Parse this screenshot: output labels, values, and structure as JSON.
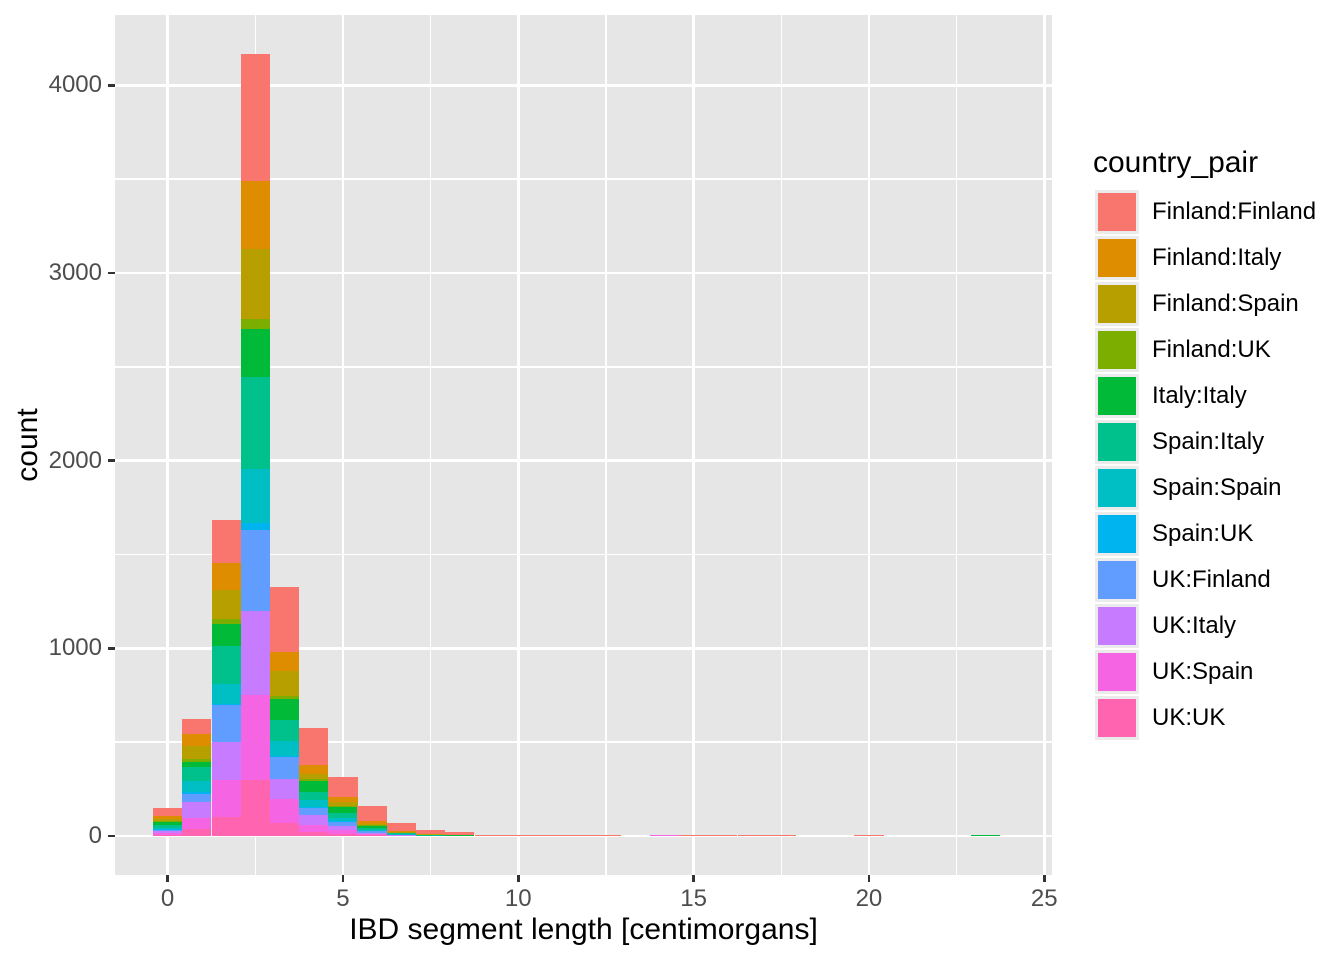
{
  "figure": {
    "background": "#ffffff",
    "panel_background": "#e6e6e6",
    "grid_color": "#ffffff",
    "tick_color": "#333333",
    "tick_label_color": "#4d4d4d"
  },
  "axes": {
    "x": {
      "title": "IBD segment length [centimorgans]",
      "tick_labels": [
        "0",
        "5",
        "10",
        "15",
        "20",
        "25"
      ],
      "tick_values": [
        0,
        5,
        10,
        15,
        20,
        25
      ],
      "minor_values": [
        2.5,
        7.5,
        12.5,
        17.5,
        22.5
      ]
    },
    "y": {
      "title": "count",
      "tick_labels": [
        "0",
        "1000",
        "2000",
        "3000",
        "4000"
      ],
      "tick_values": [
        0,
        1000,
        2000,
        3000,
        4000
      ],
      "minor_values": [
        500,
        1500,
        2500,
        3500
      ]
    }
  },
  "legend": {
    "title": "country_pair",
    "entries": [
      {
        "label": "Finland:Finland",
        "color": "#F8766D"
      },
      {
        "label": "Finland:Italy",
        "color": "#DE8C00"
      },
      {
        "label": "Finland:Spain",
        "color": "#B79F00"
      },
      {
        "label": "Finland:UK",
        "color": "#7CAE00"
      },
      {
        "label": "Italy:Italy",
        "color": "#00BA38"
      },
      {
        "label": "Spain:Italy",
        "color": "#00C08B"
      },
      {
        "label": "Spain:Spain",
        "color": "#00BFC4"
      },
      {
        "label": "Spain:UK",
        "color": "#00B4F0"
      },
      {
        "label": "UK:Finland",
        "color": "#619CFF"
      },
      {
        "label": "UK:Italy",
        "color": "#C77CFF"
      },
      {
        "label": "UK:Spain",
        "color": "#F564E3"
      },
      {
        "label": "UK:UK",
        "color": "#FF64B0"
      }
    ]
  },
  "chart_data": {
    "type": "bar",
    "subtype": "stacked-histogram",
    "title": "",
    "xlabel": "IBD segment length [centimorgans]",
    "ylabel": "count",
    "legend_title": "country_pair",
    "legend_position": "right",
    "grid": "on",
    "xlim": [
      -1.5,
      25.22
    ],
    "ylim": [
      -208,
      4375
    ],
    "binwidth": 0.8333,
    "bin_centers": [
      0,
      0.83,
      1.67,
      2.5,
      3.33,
      4.17,
      5.0,
      5.83,
      6.67,
      7.5,
      8.33,
      9.17,
      10.0,
      10.83,
      11.67,
      12.5,
      13.33,
      14.17,
      15.0,
      15.83,
      16.67,
      17.5,
      18.33,
      19.17,
      20.0,
      20.83,
      21.67,
      22.5,
      23.33,
      24.17,
      25.0
    ],
    "stack_order": "first-series-on-top",
    "series": [
      {
        "name": "Finland:Finland",
        "color": "#F8766D",
        "values": [
          40,
          80,
          227,
          680,
          345,
          198,
          104,
          78,
          40,
          18,
          12,
          4,
          2,
          1,
          1,
          1,
          0,
          0,
          2,
          1,
          1,
          1,
          0,
          0,
          1,
          0,
          0,
          0,
          0,
          0,
          0
        ]
      },
      {
        "name": "Finland:Italy",
        "color": "#DE8C00",
        "values": [
          18,
          62,
          145,
          361,
          100,
          48,
          27,
          14,
          4,
          1,
          0,
          0,
          0,
          0,
          0,
          1,
          0,
          0,
          0,
          0,
          0,
          0,
          0,
          0,
          0,
          0,
          0,
          0,
          0,
          0,
          0
        ]
      },
      {
        "name": "Finland:Spain",
        "color": "#B79F00",
        "values": [
          10,
          71,
          155,
          373,
          133,
          30,
          21,
          10,
          3,
          1,
          1,
          0,
          0,
          0,
          1,
          0,
          0,
          0,
          0,
          0,
          0,
          0,
          0,
          0,
          0,
          0,
          0,
          0,
          0,
          0,
          0
        ]
      },
      {
        "name": "Finland:UK",
        "color": "#7CAE00",
        "values": [
          4,
          18,
          23,
          53,
          17,
          7,
          4,
          2,
          1,
          0,
          0,
          0,
          0,
          0,
          0,
          0,
          0,
          0,
          0,
          0,
          0,
          0,
          0,
          0,
          0,
          0,
          0,
          0,
          0,
          0,
          0
        ]
      },
      {
        "name": "Italy:Italy",
        "color": "#00BA38",
        "values": [
          16,
          27,
          122,
          253,
          112,
          60,
          36,
          12,
          4,
          3,
          2,
          1,
          1,
          2,
          1,
          0,
          0,
          0,
          0,
          0,
          0,
          0,
          0,
          0,
          0,
          0,
          0,
          0,
          1,
          0,
          0
        ]
      },
      {
        "name": "Spain:Italy",
        "color": "#00C08B",
        "values": [
          14,
          71,
          198,
          494,
          115,
          44,
          27,
          9,
          3,
          2,
          1,
          1,
          1,
          1,
          0,
          0,
          0,
          0,
          0,
          0,
          0,
          0,
          0,
          0,
          0,
          0,
          0,
          0,
          0,
          0,
          0
        ]
      },
      {
        "name": "Spain:Spain",
        "color": "#00BFC4",
        "values": [
          8,
          62,
          108,
          287,
          80,
          35,
          14,
          5,
          2,
          0,
          0,
          0,
          0,
          0,
          0,
          0,
          0,
          0,
          0,
          0,
          0,
          0,
          0,
          0,
          0,
          0,
          0,
          0,
          0,
          0,
          0
        ]
      },
      {
        "name": "Spain:UK",
        "color": "#00B4F0",
        "values": [
          1,
          9,
          8,
          36,
          5,
          4,
          2,
          1,
          0,
          0,
          0,
          0,
          0,
          0,
          0,
          0,
          0,
          0,
          0,
          0,
          0,
          0,
          0,
          0,
          0,
          0,
          0,
          0,
          0,
          0,
          0
        ]
      },
      {
        "name": "UK:Finland",
        "color": "#619CFF",
        "values": [
          12,
          44,
          196,
          432,
          113,
          40,
          25,
          10,
          5,
          2,
          1,
          0,
          0,
          0,
          0,
          0,
          0,
          0,
          0,
          0,
          0,
          0,
          0,
          0,
          0,
          0,
          0,
          0,
          0,
          0,
          0
        ]
      },
      {
        "name": "UK:Italy",
        "color": "#C77CFF",
        "values": [
          10,
          83,
          203,
          447,
          111,
          53,
          23,
          7,
          2,
          0,
          0,
          0,
          0,
          0,
          0,
          0,
          0,
          0,
          0,
          0,
          0,
          0,
          0,
          0,
          0,
          0,
          0,
          0,
          0,
          0,
          0
        ]
      },
      {
        "name": "UK:Spain",
        "color": "#F564E3",
        "values": [
          8,
          58,
          195,
          453,
          128,
          40,
          17,
          6,
          2,
          2,
          1,
          1,
          1,
          0,
          0,
          0,
          0,
          1,
          1,
          0,
          0,
          0,
          0,
          0,
          0,
          0,
          0,
          0,
          0,
          0,
          0
        ]
      },
      {
        "name": "UK:UK",
        "color": "#FF64B0",
        "values": [
          6,
          39,
          102,
          299,
          67,
          19,
          13,
          4,
          1,
          1,
          1,
          0,
          0,
          0,
          0,
          0,
          0,
          0,
          0,
          0,
          0,
          0,
          0,
          0,
          0,
          0,
          0,
          0,
          0,
          0,
          0
        ]
      }
    ]
  }
}
